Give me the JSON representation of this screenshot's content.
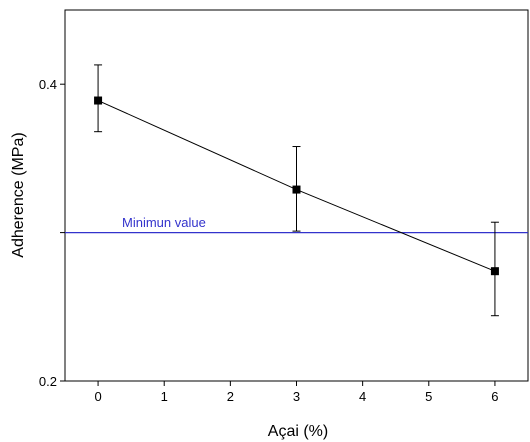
{
  "chart_data": {
    "type": "scatter",
    "title": "",
    "xlabel": "Açai (%)",
    "ylabel": "Adherence (MPa)",
    "xlim": [
      -0.5,
      6.5
    ],
    "ylim": [
      0.2,
      0.45
    ],
    "x_ticks": [
      0,
      1,
      2,
      3,
      4,
      5,
      6
    ],
    "x_tick_labels": [
      "0",
      "1",
      "2",
      "3",
      "4",
      "5",
      "6"
    ],
    "y_ticks": [
      0.2,
      0.3,
      0.4
    ],
    "y_tick_labels": [
      "0.2",
      "",
      "0.4"
    ],
    "grid": false,
    "series": [
      {
        "x": [
          0,
          3,
          6
        ],
        "y": [
          0.389,
          0.329,
          0.274
        ],
        "error_low": [
          0.368,
          0.301,
          0.244
        ],
        "error_high": [
          0.413,
          0.358,
          0.307
        ],
        "color": "#000000",
        "marker": "square",
        "connected": true
      }
    ],
    "reference_line": {
      "label": "Minimun value",
      "y": 0.3,
      "color": "#3333cc"
    }
  }
}
